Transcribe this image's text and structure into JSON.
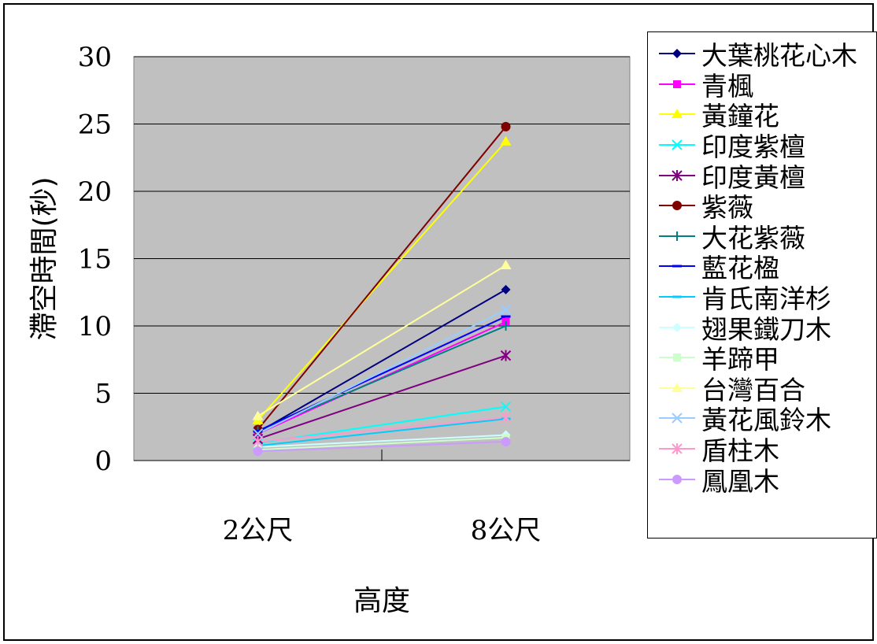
{
  "chart_data": {
    "type": "line",
    "title": "",
    "xlabel": "高度",
    "ylabel": "滯空時間(秒)",
    "categories": [
      "2公尺",
      "8公尺"
    ],
    "ylim": [
      0,
      30
    ],
    "yticks": [
      0,
      5,
      10,
      15,
      20,
      25,
      30
    ],
    "grid": true,
    "legend_position": "right",
    "series": [
      {
        "name": "大葉桃花心木",
        "values": [
          2.1,
          12.7
        ],
        "color": "#000080",
        "marker": "diamond"
      },
      {
        "name": "青楓",
        "values": [
          2.0,
          10.3
        ],
        "color": "#FF00FF",
        "marker": "square"
      },
      {
        "name": "黃鐘花",
        "values": [
          3.0,
          23.7
        ],
        "color": "#FFFF00",
        "marker": "triangle"
      },
      {
        "name": "印度紫檀",
        "values": [
          1.3,
          4.0
        ],
        "color": "#00FFFF",
        "marker": "x"
      },
      {
        "name": "印度黃檀",
        "values": [
          1.6,
          7.8
        ],
        "color": "#800080",
        "marker": "asterisk"
      },
      {
        "name": "紫薇",
        "values": [
          2.3,
          24.8
        ],
        "color": "#800000",
        "marker": "circle"
      },
      {
        "name": "大花紫薇",
        "values": [
          2.2,
          10.0
        ],
        "color": "#008080",
        "marker": "plus"
      },
      {
        "name": "藍花楹",
        "values": [
          2.2,
          10.7
        ],
        "color": "#0000FF",
        "marker": "dash"
      },
      {
        "name": "肯氏南洋杉",
        "values": [
          1.1,
          3.1
        ],
        "color": "#00CCFF",
        "marker": "dash"
      },
      {
        "name": "翅果鐵刀木",
        "values": [
          1.0,
          1.9
        ],
        "color": "#CCFFFF",
        "marker": "diamond"
      },
      {
        "name": "羊蹄甲",
        "values": [
          0.8,
          1.7
        ],
        "color": "#CCFFCC",
        "marker": "square"
      },
      {
        "name": "台灣百合",
        "values": [
          3.3,
          14.5
        ],
        "color": "#FFFF99",
        "marker": "triangle"
      },
      {
        "name": "黃花風鈴木",
        "values": [
          2.0,
          11.2
        ],
        "color": "#99CCFF",
        "marker": "x"
      },
      {
        "name": "盾柱木",
        "values": [
          1.4,
          3.2
        ],
        "color": "#FF99CC",
        "marker": "asterisk"
      },
      {
        "name": "鳳凰木",
        "values": [
          0.7,
          1.4
        ],
        "color": "#CC99FF",
        "marker": "circle"
      }
    ]
  }
}
